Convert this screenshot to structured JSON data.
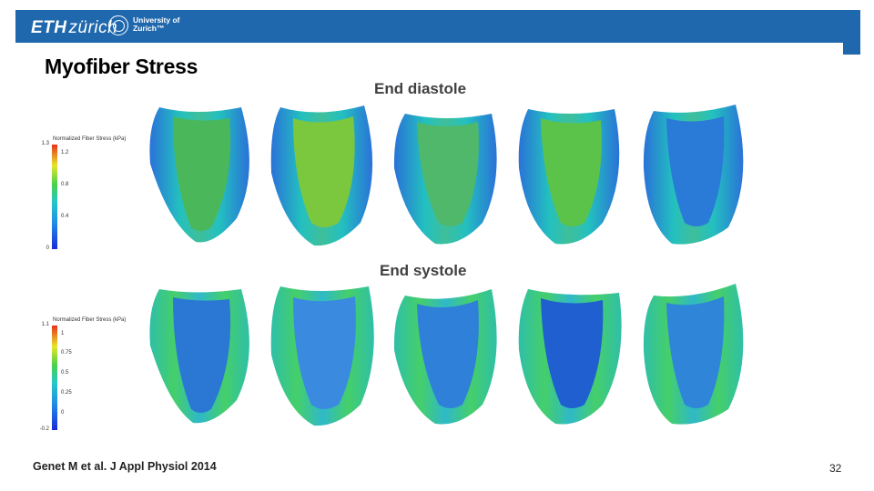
{
  "header": {
    "eth_logo_bold": "ETH",
    "eth_logo_light": "zürich",
    "uzh_line1": "University of",
    "uzh_line2": "Zurich™"
  },
  "slide": {
    "title": "Myofiber Stress",
    "diastole_label": "End diastole",
    "systole_label": "End systole",
    "citation": "Genet M et al. J Appl Physiol 2014",
    "page_number": "32"
  },
  "colorbars": {
    "diastole": {
      "title": "Normalized Fiber Stress (kPa)",
      "max_label": "1.3",
      "min_label": "0",
      "ticks": [
        "1.2",
        "0.8",
        "0.4"
      ]
    },
    "systole": {
      "title": "Normalized Fiber Stress (kPa)",
      "max_label": "1.1",
      "min_label": "-0.2",
      "ticks": [
        "1",
        "0.75",
        "0.5",
        "0.25",
        "0"
      ]
    }
  },
  "colors": {
    "banner": "#1f68ad",
    "inner_dia": [
      "#4ab85a",
      "#7bc83f",
      "#4fb86a",
      "#5cc34a",
      "#2a7ad8"
    ],
    "inner_sys": [
      "#2a78d4",
      "#3a8ae0",
      "#2f80d8",
      "#1f5fd0",
      "#2f86d8"
    ]
  }
}
